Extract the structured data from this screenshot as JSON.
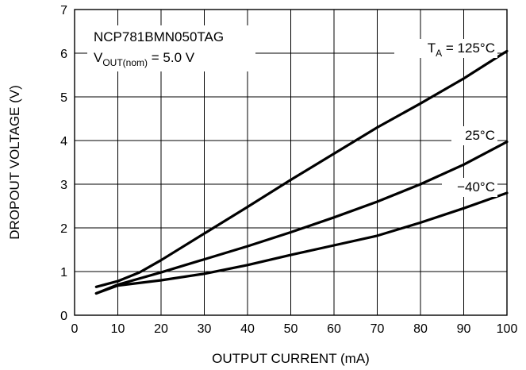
{
  "chart_data": {
    "type": "line",
    "xlabel": "OUTPUT CURRENT (mA)",
    "ylabel": "DROPOUT VOLTAGE (V)",
    "xlim": [
      0,
      100
    ],
    "ylim": [
      0,
      7
    ],
    "x_ticks": [
      "0",
      "10",
      "20",
      "30",
      "40",
      "50",
      "60",
      "70",
      "80",
      "90",
      "100"
    ],
    "y_ticks": [
      "0",
      "1",
      "2",
      "3",
      "4",
      "5",
      "6",
      "7"
    ],
    "grid": true,
    "annotation": {
      "part": "NCP781BMN050TAG",
      "vout_prefix": "V",
      "vout_sub": "OUT(nom)",
      "vout_suffix": " = 5.0 V"
    },
    "series": [
      {
        "label_prefix": "T",
        "label_sub": "A",
        "label_suffix": " = 125°C",
        "x": [
          5,
          10,
          15,
          20,
          30,
          40,
          50,
          60,
          70,
          80,
          90,
          100
        ],
        "y": [
          0.65,
          0.78,
          0.98,
          1.26,
          1.87,
          2.48,
          3.1,
          3.7,
          4.3,
          4.85,
          5.42,
          6.05
        ]
      },
      {
        "label": "25°C",
        "x": [
          5,
          10,
          20,
          30,
          40,
          50,
          60,
          70,
          80,
          90,
          100
        ],
        "y": [
          0.5,
          0.7,
          0.98,
          1.28,
          1.58,
          1.9,
          2.24,
          2.6,
          3.0,
          3.45,
          3.97
        ]
      },
      {
        "label": "−40°C",
        "x": [
          5,
          10,
          20,
          30,
          40,
          50,
          60,
          70,
          80,
          90,
          100
        ],
        "y": [
          0.5,
          0.68,
          0.8,
          0.95,
          1.15,
          1.38,
          1.6,
          1.82,
          2.12,
          2.45,
          2.8
        ]
      }
    ]
  }
}
